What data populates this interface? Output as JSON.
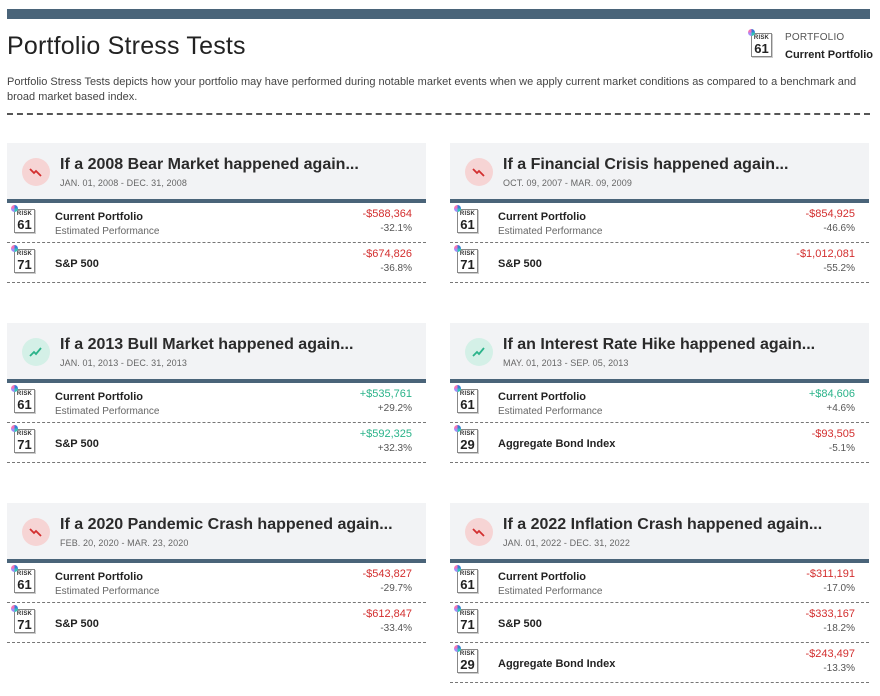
{
  "page": {
    "title": "Portfolio Stress Tests",
    "description": "Portfolio Stress Tests depicts how your portfolio may have performed during notable market events when we apply current market conditions as compared to a benchmark and broad market based index.",
    "portfolio_badge": {
      "label": "PORTFOLIO",
      "value": "Current Portfolio",
      "risk_label": "RISK",
      "risk_score": "61"
    }
  },
  "colors": {
    "accent_bar": "#4a6479",
    "negative": "#d32f2f",
    "positive": "#2bb38a",
    "card_header_bg": "#f2f3f5"
  },
  "cards": [
    {
      "title": "If a 2008 Bear Market happened again...",
      "dates": "JAN. 01, 2008 - DEC. 31, 2008",
      "trend": "down",
      "rows": [
        {
          "risk_label": "RISK",
          "risk": "61",
          "name": "Current Portfolio",
          "sub": "Estimated Performance",
          "amount": "-$588,364",
          "pct": "-32.1%",
          "sign": "neg"
        },
        {
          "risk_label": "RISK",
          "risk": "71",
          "name": "S&P 500",
          "amount": "-$674,826",
          "pct": "-36.8%",
          "sign": "neg"
        }
      ]
    },
    {
      "title": "If a Financial Crisis happened again...",
      "dates": "OCT. 09, 2007 - MAR. 09, 2009",
      "trend": "down",
      "rows": [
        {
          "risk_label": "RISK",
          "risk": "61",
          "name": "Current Portfolio",
          "sub": "Estimated Performance",
          "amount": "-$854,925",
          "pct": "-46.6%",
          "sign": "neg"
        },
        {
          "risk_label": "RISK",
          "risk": "71",
          "name": "S&P 500",
          "amount": "-$1,012,081",
          "pct": "-55.2%",
          "sign": "neg"
        }
      ]
    },
    {
      "title": "If a 2013 Bull Market happened again...",
      "dates": "JAN. 01, 2013 - DEC. 31, 2013",
      "trend": "up",
      "rows": [
        {
          "risk_label": "RISK",
          "risk": "61",
          "name": "Current Portfolio",
          "sub": "Estimated Performance",
          "amount": "+$535,761",
          "pct": "+29.2%",
          "sign": "pos"
        },
        {
          "risk_label": "RISK",
          "risk": "71",
          "name": "S&P 500",
          "amount": "+$592,325",
          "pct": "+32.3%",
          "sign": "pos"
        }
      ]
    },
    {
      "title": "If an Interest Rate Hike happened again...",
      "dates": "MAY. 01, 2013 - SEP. 05, 2013",
      "trend": "up",
      "rows": [
        {
          "risk_label": "RISK",
          "risk": "61",
          "name": "Current Portfolio",
          "sub": "Estimated Performance",
          "amount": "+$84,606",
          "pct": "+4.6%",
          "sign": "pos"
        },
        {
          "risk_label": "RISK",
          "risk": "29",
          "name": "Aggregate Bond Index",
          "amount": "-$93,505",
          "pct": "-5.1%",
          "sign": "neg"
        }
      ]
    },
    {
      "title": "If a 2020 Pandemic Crash happened again...",
      "dates": "FEB. 20, 2020 - MAR. 23, 2020",
      "trend": "down",
      "rows": [
        {
          "risk_label": "RISK",
          "risk": "61",
          "name": "Current Portfolio",
          "sub": "Estimated Performance",
          "amount": "-$543,827",
          "pct": "-29.7%",
          "sign": "neg"
        },
        {
          "risk_label": "RISK",
          "risk": "71",
          "name": "S&P 500",
          "amount": "-$612,847",
          "pct": "-33.4%",
          "sign": "neg"
        }
      ]
    },
    {
      "title": "If a 2022 Inflation Crash happened again...",
      "dates": "JAN. 01, 2022 - DEC. 31, 2022",
      "trend": "down",
      "rows": [
        {
          "risk_label": "RISK",
          "risk": "61",
          "name": "Current Portfolio",
          "sub": "Estimated Performance",
          "amount": "-$311,191",
          "pct": "-17.0%",
          "sign": "neg"
        },
        {
          "risk_label": "RISK",
          "risk": "71",
          "name": "S&P 500",
          "amount": "-$333,167",
          "pct": "-18.2%",
          "sign": "neg"
        },
        {
          "risk_label": "RISK",
          "risk": "29",
          "name": "Aggregate Bond Index",
          "amount": "-$243,497",
          "pct": "-13.3%",
          "sign": "neg"
        }
      ]
    }
  ]
}
